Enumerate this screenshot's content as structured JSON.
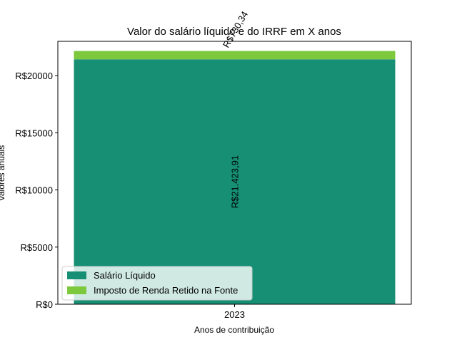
{
  "chart_data": {
    "type": "bar",
    "stacked": true,
    "title": "Valor do salário líquido e do IRRF em X anos",
    "xlabel": "Anos de contribuição",
    "ylabel": "Valores anuais",
    "categories": [
      "2023"
    ],
    "ylim": [
      0,
      23000
    ],
    "yticks": [
      0,
      5000,
      10000,
      15000,
      20000
    ],
    "ytick_labels": [
      "R$0",
      "R$5000",
      "R$10000",
      "R$15000",
      "R$20000"
    ],
    "grid": false,
    "legend_position": "lower-left",
    "series": [
      {
        "name": "Salário Líquido",
        "values": [
          21423.91
        ],
        "labels": [
          "R$21.423,91"
        ],
        "color": "#168f75"
      },
      {
        "name": "Imposto de Renda Retido na Fonte",
        "values": [
          730.34
        ],
        "labels": [
          "R$730,34"
        ],
        "color": "#7dc83c"
      }
    ]
  }
}
